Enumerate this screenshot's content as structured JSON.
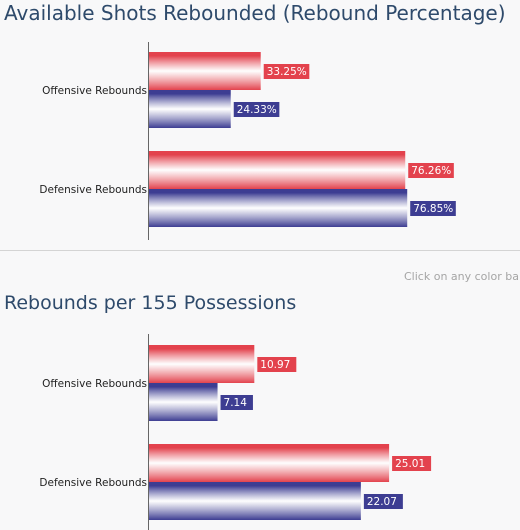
{
  "chart_data": [
    {
      "type": "bar",
      "orientation": "horizontal",
      "title": "Available Shots Rebounded (Rebound Percentage)",
      "categories": [
        "Offensive Rebounds",
        "Defensive Rebounds"
      ],
      "series": [
        {
          "values": [
            33.25,
            76.26
          ],
          "labels": [
            "33.25%",
            "76.26%"
          ],
          "color": "#e3424d"
        },
        {
          "values": [
            24.33,
            76.85
          ],
          "labels": [
            "24.33%",
            "76.85%"
          ],
          "color": "#3d3d92"
        }
      ],
      "xlim": [
        0,
        100
      ]
    },
    {
      "type": "bar",
      "orientation": "horizontal",
      "title": "Rebounds per 155 Possessions",
      "categories": [
        "Offensive Rebounds",
        "Defensive Rebounds"
      ],
      "series": [
        {
          "values": [
            10.97,
            25.01
          ],
          "labels": [
            "10.97",
            "25.01"
          ],
          "color": "#e3424d"
        },
        {
          "values": [
            7.14,
            22.07
          ],
          "labels": [
            "7.14",
            "22.07"
          ],
          "color": "#3d3d92"
        }
      ],
      "xlim": [
        0,
        35
      ]
    }
  ],
  "hint_text": "Click on any color ba"
}
